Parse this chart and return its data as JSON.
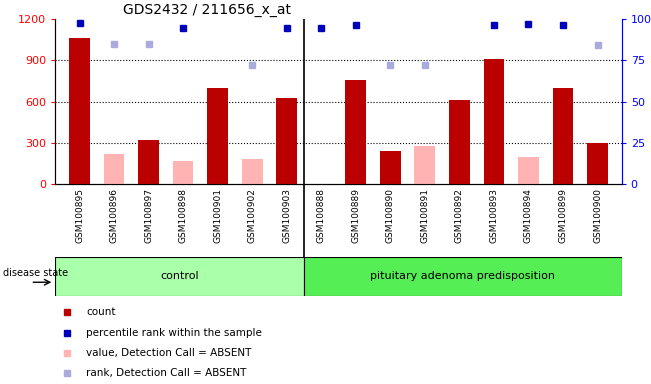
{
  "title": "GDS2432 / 211656_x_at",
  "samples": [
    "GSM100895",
    "GSM100896",
    "GSM100897",
    "GSM100898",
    "GSM100901",
    "GSM100902",
    "GSM100903",
    "GSM100888",
    "GSM100889",
    "GSM100890",
    "GSM100891",
    "GSM100892",
    "GSM100893",
    "GSM100894",
    "GSM100899",
    "GSM100900"
  ],
  "n_control": 7,
  "n_pituitary": 9,
  "count_values": [
    1060,
    null,
    320,
    null,
    700,
    null,
    630,
    null,
    760,
    240,
    null,
    610,
    910,
    null,
    700,
    300
  ],
  "absent_values": [
    null,
    220,
    null,
    170,
    null,
    185,
    null,
    null,
    null,
    null,
    275,
    null,
    null,
    195,
    null,
    null
  ],
  "dark_blue_rank": [
    1175,
    null,
    null,
    1135,
    null,
    null,
    1135,
    1135,
    1155,
    null,
    null,
    null,
    1155,
    1165,
    1155,
    null
  ],
  "light_blue_rank": [
    null,
    1020,
    1020,
    null,
    null,
    870,
    null,
    null,
    null,
    870,
    870,
    null,
    null,
    null,
    null,
    1010
  ],
  "ylim_left": [
    0,
    1200
  ],
  "ylim_right": [
    0,
    100
  ],
  "yticks_left": [
    0,
    300,
    600,
    900,
    1200
  ],
  "yticks_right": [
    0,
    25,
    50,
    75,
    100
  ],
  "bar_color": "#bb0000",
  "absent_bar_color": "#ffb3b3",
  "dark_blue_color": "#0000bb",
  "light_blue_color": "#aaaadd",
  "control_group_color": "#aaffaa",
  "pituitary_group_color": "#55ee55",
  "bg_color": "#dddddd",
  "legend_items": [
    "count",
    "percentile rank within the sample",
    "value, Detection Call = ABSENT",
    "rank, Detection Call = ABSENT"
  ],
  "legend_colors": [
    "#bb0000",
    "#0000bb",
    "#ffb3b3",
    "#aaaadd"
  ]
}
